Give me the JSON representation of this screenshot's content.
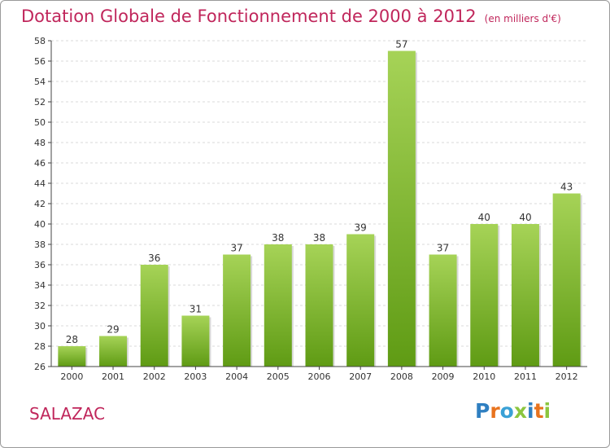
{
  "header": {
    "title": "Dotation Globale de Fonctionnement de 2000 à 2012",
    "unit": "(en milliers d'€)"
  },
  "footer": {
    "commune": "SALAZAC",
    "brand": "Proxiti"
  },
  "colors": {
    "title": "#c0265b",
    "bar_top": "#a6d357",
    "bar_bottom": "#5f9b14",
    "axis": "#444444",
    "grid": "#dddddd"
  },
  "chart_data": {
    "type": "bar",
    "categories": [
      "2000",
      "2001",
      "2002",
      "2003",
      "2004",
      "2005",
      "2006",
      "2007",
      "2008",
      "2009",
      "2010",
      "2011",
      "2012"
    ],
    "values": [
      28,
      29,
      36,
      31,
      37,
      38,
      38,
      39,
      57,
      37,
      40,
      40,
      43
    ],
    "ylim": [
      26,
      58
    ],
    "yticks": [
      26,
      28,
      30,
      32,
      34,
      36,
      38,
      40,
      42,
      44,
      46,
      48,
      50,
      52,
      54,
      56,
      58
    ],
    "grid": "horizontal dashed",
    "data_labels": true
  }
}
